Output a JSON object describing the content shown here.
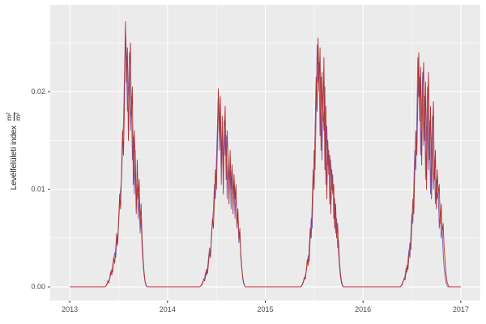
{
  "theme": {
    "panel_background": "#ebebeb",
    "grid_major_color": "#ffffff",
    "grid_minor_color": "#ffffff",
    "axis_text_color": "#4d4d4d",
    "axis_title_color": "#1a1a1a",
    "tick_mark_color": "#333333",
    "outer_background": "#ffffff"
  },
  "chart_data": {
    "type": "line",
    "title": "",
    "xlabel": "",
    "ylabel": "Levélfelületi index m²/m²",
    "ylabel_text": "Levélfelületi index",
    "ylabel_frac_num": "m²",
    "ylabel_frac_den": "m²",
    "legend": "none",
    "grid": "on",
    "x_domain": [
      2012.8,
      2017.2
    ],
    "y_domain": [
      -0.0014,
      0.0289
    ],
    "x_ticks": [
      2013,
      2014,
      2015,
      2016,
      2017
    ],
    "x_tick_labels": [
      "2013",
      "2014",
      "2015",
      "2016",
      "2017"
    ],
    "x_minor": [
      2013.5,
      2014.5,
      2015.5,
      2016.5
    ],
    "y_ticks": [
      0.0,
      0.01,
      0.02
    ],
    "y_tick_labels": [
      "0.00",
      "0.01",
      "0.02"
    ],
    "y_minor": [
      0.005,
      0.015,
      0.025
    ],
    "unit": 0.001,
    "baseline": {
      "x_start": 2013.0,
      "x_end": 2017.0,
      "y": 0
    },
    "series": [
      {
        "name": "purple",
        "color": "#7e57a5",
        "seasons": [
          {
            "start": 2013.36,
            "step": 0.01,
            "values": [
              0.0,
              0.1,
              0.2,
              0.5,
              0.7,
              0.9,
              1.3,
              1.8,
              1.5,
              2.8,
              3.5,
              3.0,
              5.0,
              4.2,
              6.5,
              8.5,
              10.0,
              11.0,
              14.5,
              17.0,
              22.0,
              26.5,
              23.5,
              18.0,
              20.0,
              24.0,
              16.0,
              19.5,
              13.0,
              15.5,
              9.5,
              14.0,
              8.0,
              10.5,
              7.0,
              9.5,
              5.5,
              7.0,
              4.0,
              2.5,
              1.2,
              0.5,
              0.1,
              0.0
            ]
          },
          {
            "start": 2014.33,
            "step": 0.01,
            "values": [
              0.0,
              0.1,
              0.3,
              0.5,
              0.7,
              1.0,
              1.5,
              1.2,
              2.0,
              3.0,
              4.0,
              3.2,
              5.5,
              6.5,
              8.0,
              10.5,
              9.0,
              13.0,
              16.5,
              20.0,
              14.0,
              18.0,
              10.5,
              16.0,
              12.0,
              17.0,
              13.5,
              15.5,
              9.0,
              13.5,
              11.0,
              12.0,
              8.0,
              12.5,
              9.5,
              11.0,
              7.0,
              10.0,
              6.0,
              7.5,
              4.5,
              5.5,
              3.0,
              1.8,
              0.8,
              0.3,
              0.1,
              0.0
            ]
          },
          {
            "start": 2015.36,
            "step": 0.01,
            "values": [
              0.0,
              0.1,
              0.2,
              0.5,
              0.8,
              1.2,
              1.6,
              2.4,
              3.2,
              2.6,
              5.0,
              7.0,
              6.0,
              10.0,
              14.0,
              12.0,
              18.0,
              24.8,
              21.0,
              23.0,
              15.5,
              21.5,
              13.0,
              19.0,
              16.0,
              20.5,
              10.5,
              16.5,
              12.5,
              14.0,
              8.5,
              13.0,
              10.0,
              11.5,
              7.0,
              9.0,
              5.5,
              7.0,
              4.0,
              4.8,
              2.5,
              1.4,
              0.6,
              0.2,
              0.0
            ]
          },
          {
            "start": 2016.38,
            "step": 0.01,
            "values": [
              0.0,
              0.1,
              0.3,
              0.6,
              0.8,
              1.2,
              1.9,
              1.5,
              2.8,
              3.8,
              3.0,
              5.5,
              7.5,
              6.5,
              10.5,
              14.0,
              12.0,
              17.0,
              23.5,
              19.5,
              21.5,
              13.5,
              18.0,
              22.0,
              14.5,
              19.5,
              11.0,
              16.0,
              20.5,
              12.0,
              17.0,
              9.5,
              14.5,
              17.5,
              10.0,
              13.0,
              8.5,
              11.0,
              9.0,
              9.8,
              6.0,
              7.5,
              5.0,
              5.8,
              3.5,
              2.0,
              1.0,
              0.4,
              0.1,
              0.0,
              0.0
            ]
          }
        ]
      },
      {
        "name": "red",
        "color": "#b0312f",
        "seasons": [
          {
            "start": 2013.36,
            "step": 0.01,
            "values": [
              0.0,
              0.1,
              0.3,
              0.6,
              0.4,
              1.0,
              1.6,
              1.2,
              2.2,
              3.0,
              2.4,
              4.0,
              5.5,
              4.5,
              7.0,
              9.5,
              8.0,
              12.0,
              16.0,
              13.5,
              19.0,
              27.2,
              21.0,
              24.5,
              15.0,
              22.0,
              25.0,
              17.5,
              20.5,
              10.5,
              16.0,
              12.5,
              7.5,
              13.0,
              9.0,
              11.0,
              6.5,
              8.5,
              5.0,
              3.0,
              1.5,
              0.6,
              0.2,
              0.0
            ]
          },
          {
            "start": 2014.33,
            "step": 0.01,
            "values": [
              0.0,
              0.1,
              0.2,
              0.4,
              0.8,
              0.6,
              1.2,
              1.8,
              1.4,
              2.5,
              3.5,
              3.0,
              5.0,
              7.0,
              6.0,
              9.0,
              12.0,
              10.0,
              14.5,
              20.3,
              16.0,
              19.5,
              12.5,
              17.5,
              9.5,
              15.0,
              18.5,
              11.0,
              16.0,
              13.0,
              8.5,
              14.0,
              10.0,
              12.5,
              7.5,
              11.5,
              9.0,
              10.5,
              6.5,
              8.0,
              5.0,
              6.0,
              3.5,
              2.0,
              1.0,
              0.4,
              0.1,
              0.0
            ]
          },
          {
            "start": 2015.36,
            "step": 0.01,
            "values": [
              0.0,
              0.1,
              0.3,
              0.6,
              1.0,
              0.8,
              1.8,
              2.8,
              2.2,
              4.0,
              6.0,
              5.0,
              8.5,
              12.0,
              10.0,
              16.0,
              21.5,
              18.0,
              25.5,
              20.0,
              24.5,
              14.0,
              22.0,
              17.0,
              23.5,
              12.0,
              18.5,
              9.0,
              15.0,
              11.5,
              13.5,
              7.5,
              12.0,
              9.5,
              10.5,
              6.0,
              8.5,
              5.0,
              6.5,
              3.5,
              2.0,
              1.0,
              0.4,
              0.1,
              0.0
            ]
          },
          {
            "start": 2016.38,
            "step": 0.01,
            "values": [
              0.0,
              0.1,
              0.2,
              0.5,
              0.9,
              0.7,
              1.5,
              2.2,
              1.8,
              3.2,
              4.5,
              3.8,
              6.5,
              9.0,
              7.5,
              12.0,
              16.0,
              13.5,
              19.0,
              24.0,
              17.0,
              22.5,
              12.5,
              20.0,
              23.0,
              15.0,
              21.0,
              10.0,
              17.5,
              22.0,
              13.0,
              18.5,
              9.0,
              15.5,
              19.0,
              11.0,
              14.0,
              8.0,
              12.0,
              9.5,
              10.5,
              6.5,
              8.5,
              5.5,
              6.5,
              4.0,
              2.5,
              1.2,
              0.5,
              0.2,
              0.0
            ]
          }
        ]
      }
    ]
  }
}
